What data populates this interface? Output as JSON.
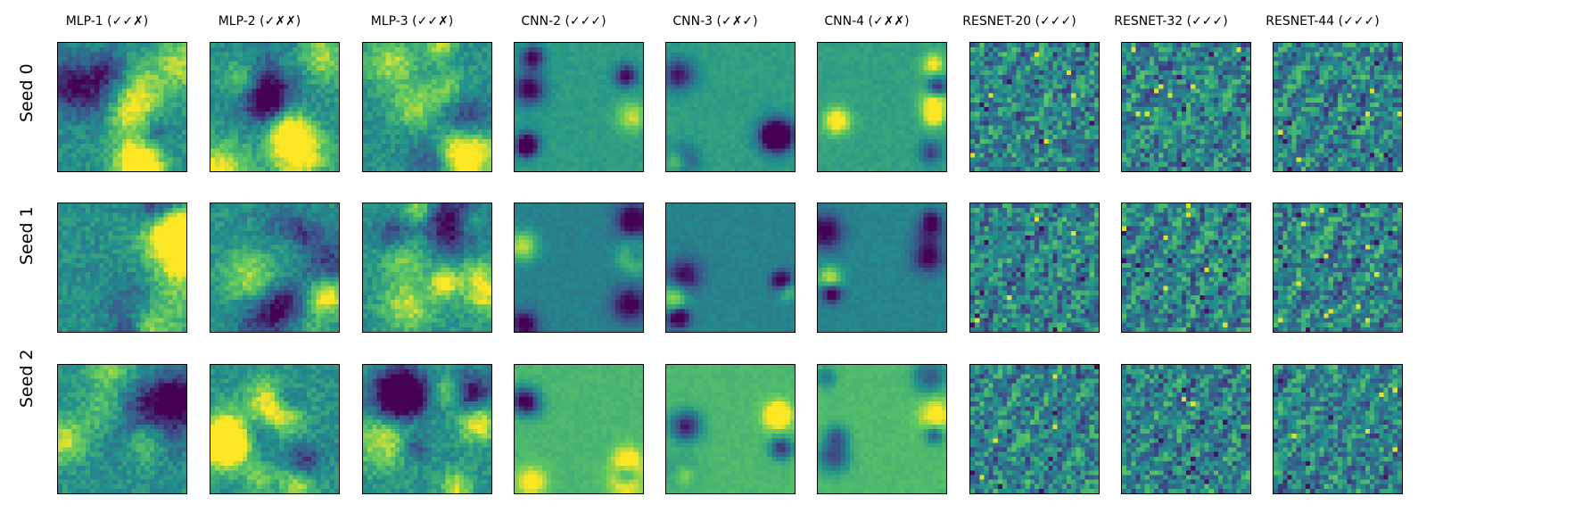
{
  "figure": {
    "columns": [
      {
        "title": "MLP-1 (✓✓✗)",
        "kind": "mlp"
      },
      {
        "title": "MLP-2 (✓✗✗)",
        "kind": "mlp"
      },
      {
        "title": "MLP-3 (✓✓✗)",
        "kind": "mlp"
      },
      {
        "title": "CNN-2 (✓✓✓)",
        "kind": "cnn"
      },
      {
        "title": "CNN-3 (✓✗✓)",
        "kind": "cnn"
      },
      {
        "title": "CNN-4 (✓✗✗)",
        "kind": "cnn"
      },
      {
        "title": "RESNET-20 (✓✓✓)",
        "kind": "resnet"
      },
      {
        "title": "RESNET-32 (✓✓✓)",
        "kind": "resnet"
      },
      {
        "title": "RESNET-44 (✓✓✓)",
        "kind": "resnet"
      }
    ],
    "rows": [
      {
        "label": "Seed 0"
      },
      {
        "label": "Seed 1"
      },
      {
        "label": "Seed 2"
      }
    ],
    "colormap": [
      "#440154",
      "#3b528b",
      "#21918c",
      "#5ec962",
      "#fde725"
    ]
  }
}
